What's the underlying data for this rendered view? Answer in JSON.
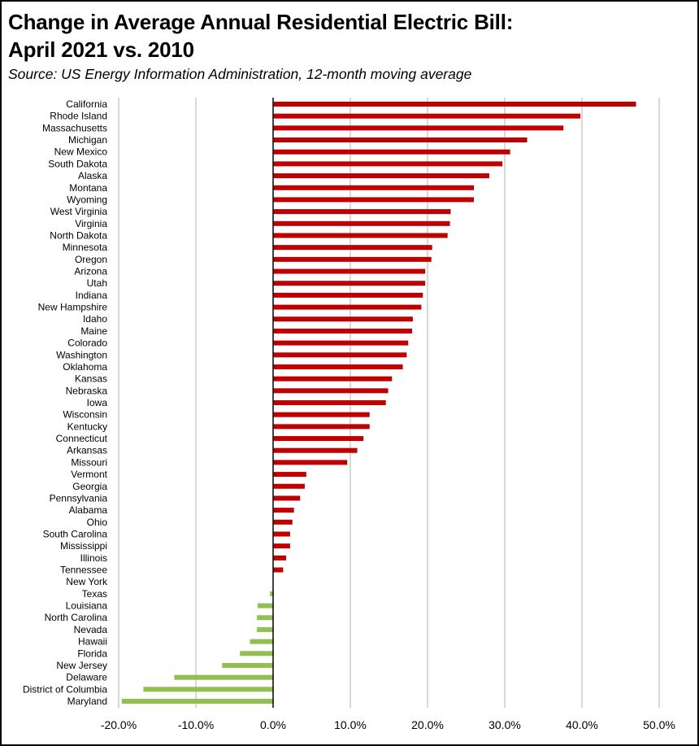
{
  "chart_data": {
    "type": "bar",
    "orientation": "horizontal",
    "title_line1": "Change in Average Annual Residential Electric Bill:",
    "title_line2": "April 2021 vs. 2010",
    "subtitle": "Source:  US Energy Information Administration, 12-month moving average",
    "xlim": [
      -20,
      50
    ],
    "xticks": [
      -20,
      -10,
      0,
      10,
      20,
      30,
      40,
      50
    ],
    "tick_format": "percent_1dp",
    "grid": "vertical",
    "colors": {
      "positive": "#c00000",
      "negative": "#92c050",
      "grid": "#bfbfbf",
      "axis": "#000000"
    },
    "categories": [
      "California",
      "Rhode Island",
      "Massachusetts",
      "Michigan",
      "New Mexico",
      "South Dakota",
      "Alaska",
      "Montana",
      "Wyoming",
      "West Virginia",
      "Virginia",
      "North Dakota",
      "Minnesota",
      "Oregon",
      "Arizona",
      "Utah",
      "Indiana",
      "New Hampshire",
      "Idaho",
      "Maine",
      "Colorado",
      "Washington",
      "Oklahoma",
      "Kansas",
      "Nebraska",
      "Iowa",
      "Wisconsin",
      "Kentucky",
      "Connecticut",
      "Arkansas",
      "Missouri",
      "Vermont",
      "Georgia",
      "Pennsylvania",
      "Alabama",
      "Ohio",
      "South Carolina",
      "Mississippi",
      "Illinois",
      "Tennessee",
      "New York",
      "Texas",
      "Louisiana",
      "North Carolina",
      "Nevada",
      "Hawaii",
      "Florida",
      "New Jersey",
      "Delaware",
      "District of Columbia",
      "Maryland"
    ],
    "values": [
      47.0,
      39.8,
      37.6,
      32.9,
      30.7,
      29.7,
      28.0,
      26.0,
      26.0,
      23.0,
      22.9,
      22.6,
      20.6,
      20.5,
      19.7,
      19.7,
      19.4,
      19.2,
      18.1,
      18.0,
      17.5,
      17.3,
      16.8,
      15.4,
      14.9,
      14.6,
      12.5,
      12.5,
      11.7,
      10.9,
      9.6,
      4.3,
      4.1,
      3.5,
      2.7,
      2.5,
      2.2,
      2.2,
      1.7,
      1.3,
      0.0,
      -0.4,
      -2.0,
      -2.1,
      -2.1,
      -3.0,
      -4.3,
      -6.6,
      -12.8,
      -16.8,
      -19.6
    ]
  }
}
